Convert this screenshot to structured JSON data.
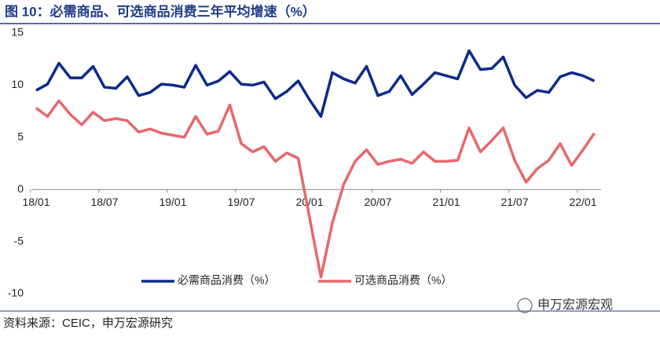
{
  "chart_data": {
    "type": "line",
    "title": "图 10：必需商品、可选商品消费三年平均增速（%）",
    "source": "资料来源：CEIC，申万宏源研究",
    "watermark": "申万宏源宏观",
    "categories": [
      "18/01",
      null,
      null,
      null,
      null,
      null,
      "18/07",
      null,
      null,
      null,
      null,
      null,
      "19/01",
      null,
      null,
      null,
      null,
      null,
      "19/07",
      null,
      null,
      null,
      null,
      null,
      "20/01",
      null,
      null,
      null,
      null,
      null,
      "20/07",
      null,
      null,
      null,
      null,
      null,
      "21/01",
      null,
      null,
      null,
      null,
      null,
      "21/07",
      null,
      null,
      null,
      null,
      null,
      "22/01",
      null
    ],
    "series": [
      {
        "name": "必需商品消费（%）",
        "color": "#0b2a8c",
        "values": [
          9.5,
          10.1,
          12.1,
          10.7,
          10.7,
          11.8,
          9.8,
          9.7,
          10.8,
          9.0,
          9.3,
          10.1,
          10.0,
          9.8,
          11.9,
          10.0,
          10.4,
          11.3,
          10.1,
          10.0,
          10.3,
          8.7,
          9.4,
          10.4,
          8.6,
          7.0,
          11.2,
          10.6,
          10.2,
          11.8,
          9.0,
          9.4,
          10.9,
          9.1,
          10.1,
          11.2,
          10.9,
          10.6,
          13.3,
          11.5,
          11.6,
          12.7,
          10.0,
          8.8,
          9.5,
          9.3,
          10.8,
          11.2,
          10.9,
          10.4
        ]
      },
      {
        "name": "可选商品消费（%）",
        "color": "#e8676c",
        "values": [
          7.8,
          7.0,
          8.5,
          7.2,
          6.2,
          7.4,
          6.6,
          6.8,
          6.6,
          5.5,
          5.8,
          5.4,
          5.2,
          5.0,
          7.0,
          5.3,
          5.6,
          8.1,
          4.4,
          3.6,
          4.1,
          2.7,
          3.5,
          3.0,
          -2.7,
          -8.4,
          -3.2,
          0.5,
          2.7,
          3.8,
          2.4,
          2.7,
          2.9,
          2.5,
          3.6,
          2.7,
          2.7,
          2.8,
          5.9,
          3.6,
          4.7,
          5.9,
          2.8,
          0.7,
          2.0,
          2.8,
          4.4,
          2.3,
          3.8,
          5.4
        ]
      }
    ],
    "ylim": [
      -10,
      15
    ],
    "yticks": [
      15,
      10,
      5,
      0,
      -5,
      -10
    ],
    "grid": false,
    "legend": "bottom"
  }
}
